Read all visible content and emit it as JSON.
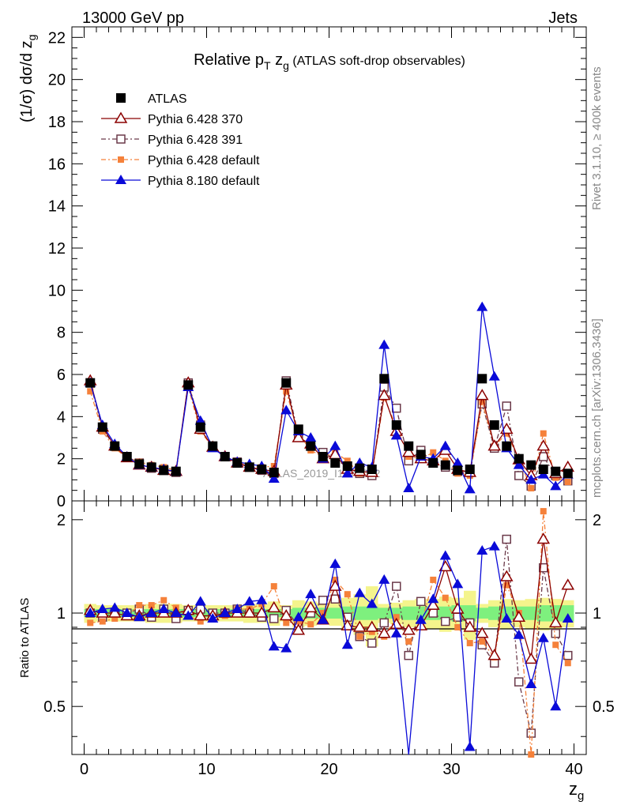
{
  "header": {
    "left": "13000 GeV pp",
    "right": "Jets"
  },
  "side_labels": {
    "rivet": "Rivet 3.1.10, ≥ 400k events",
    "mcplots": "mcplots.cern.ch [arXiv:1306.3436]"
  },
  "title": {
    "pre": "Relative p",
    "sub1": "T",
    "mid": " z",
    "sub2": "g",
    "post": " (ATLAS soft-drop observables)"
  },
  "watermark": "ATLAS_2019_I1772062",
  "ylabel_top": "(1/σ) dσ/d z",
  "ylabel_top_sub": "g",
  "ylabel_bottom": "Ratio to ATLAS",
  "xlabel": "z",
  "xlabel_sub": "g",
  "colors": {
    "atlas": "#000000",
    "p370": "#8b0000",
    "p391": "#6b3a4a",
    "p6def": "#f5813a",
    "p8": "#0a0ad8",
    "band_inner": "#7ef07e",
    "band_outer": "#f4f48c"
  },
  "chart_data": {
    "type": "line",
    "x": [
      0.5,
      1.5,
      2.5,
      3.5,
      4.5,
      5.5,
      6.5,
      7.5,
      8.5,
      9.5,
      10.5,
      11.5,
      12.5,
      13.5,
      14.5,
      15.5,
      16.5,
      17.5,
      18.5,
      19.5,
      20.5,
      21.5,
      22.5,
      23.5,
      24.5,
      25.5,
      26.5,
      27.5,
      28.5,
      29.5,
      30.5,
      31.5,
      32.5,
      33.5,
      34.5,
      35.5,
      36.5,
      37.5,
      38.5,
      39.5
    ],
    "xlim": [
      -1,
      41
    ],
    "top_panel": {
      "ylim": [
        0,
        22.5
      ],
      "yticks": [
        0,
        2,
        4,
        6,
        8,
        10,
        12,
        14,
        16,
        18,
        20,
        22
      ],
      "series": [
        {
          "name": "ATLAS",
          "key": "atlas",
          "marker": "square",
          "values": [
            5.6,
            3.5,
            2.6,
            2.1,
            1.75,
            1.6,
            1.45,
            1.4,
            5.5,
            3.5,
            2.6,
            2.1,
            1.8,
            1.6,
            1.5,
            1.35,
            5.6,
            3.4,
            2.6,
            2.1,
            1.8,
            1.65,
            1.55,
            1.5,
            5.8,
            3.6,
            2.6,
            2.2,
            1.8,
            1.7,
            1.45,
            1.5,
            5.8,
            3.6,
            2.6,
            2.0,
            1.7,
            1.5,
            1.4,
            1.3
          ]
        },
        {
          "name": "Pythia 6.428 370",
          "key": "p370",
          "marker": "triangle-open",
          "values": [
            5.7,
            3.5,
            2.6,
            2.05,
            1.7,
            1.6,
            1.45,
            1.4,
            5.6,
            3.4,
            2.55,
            2.1,
            1.8,
            1.6,
            1.5,
            1.4,
            5.5,
            3.0,
            2.7,
            2.0,
            2.2,
            1.5,
            1.4,
            1.35,
            5.0,
            3.3,
            2.3,
            2.0,
            1.9,
            2.4,
            1.5,
            1.35,
            5.0,
            2.6,
            3.4,
            1.95,
            1.2,
            2.6,
            1.3,
            1.6
          ]
        },
        {
          "name": "Pythia 6.428 391",
          "key": "p391",
          "marker": "square-open",
          "values": [
            5.6,
            3.4,
            2.6,
            2.1,
            1.8,
            1.55,
            1.5,
            1.35,
            5.6,
            3.6,
            2.6,
            2.1,
            1.85,
            1.6,
            1.45,
            1.3,
            5.7,
            3.1,
            2.6,
            2.3,
            2.0,
            1.6,
            1.3,
            1.2,
            5.4,
            4.4,
            1.9,
            2.4,
            1.8,
            1.6,
            1.4,
            1.4,
            4.6,
            2.5,
            4.5,
            1.2,
            0.7,
            2.1,
            1.2,
            0.95
          ]
        },
        {
          "name": "Pythia 6.428 default",
          "key": "p6def",
          "marker": "square-filled",
          "values": [
            5.2,
            3.3,
            2.5,
            2.05,
            1.85,
            1.7,
            1.6,
            1.45,
            5.4,
            3.3,
            2.55,
            2.05,
            1.85,
            1.65,
            1.6,
            1.65,
            5.2,
            3.2,
            2.4,
            2.1,
            2.3,
            1.9,
            1.3,
            1.3,
            4.9,
            3.5,
            2.1,
            2.0,
            2.3,
            1.9,
            1.3,
            1.2,
            4.7,
            2.6,
            3.2,
            2.0,
            0.6,
            3.2,
            1.1,
            0.9
          ]
        },
        {
          "name": "Pythia 8.180 default",
          "key": "p8",
          "marker": "triangle-filled",
          "values": [
            5.6,
            3.6,
            2.7,
            2.1,
            1.7,
            1.6,
            1.5,
            1.4,
            5.4,
            3.8,
            2.5,
            2.1,
            1.85,
            1.75,
            1.65,
            1.05,
            4.3,
            3.3,
            3.0,
            2.0,
            2.6,
            1.3,
            1.8,
            1.6,
            7.4,
            3.1,
            0.6,
            2.1,
            2.0,
            2.6,
            1.8,
            0.55,
            9.2,
            5.9,
            2.5,
            1.7,
            1.0,
            1.25,
            0.7,
            1.25
          ]
        }
      ]
    },
    "bottom_panel": {
      "ylim": [
        0.35,
        2.3
      ],
      "yticks": [
        0.5,
        1,
        2
      ],
      "reference": 1,
      "band_inner_halfwidth": [
        0.03,
        0.03,
        0.03,
        0.03,
        0.03,
        0.03,
        0.03,
        0.03,
        0.03,
        0.03,
        0.03,
        0.03,
        0.03,
        0.03,
        0.03,
        0.03,
        0.03,
        0.04,
        0.04,
        0.04,
        0.04,
        0.05,
        0.05,
        0.05,
        0.04,
        0.04,
        0.05,
        0.05,
        0.05,
        0.05,
        0.06,
        0.06,
        0.04,
        0.05,
        0.05,
        0.05,
        0.05,
        0.06,
        0.06,
        0.06
      ],
      "band_outer_halfwidth": [
        0.07,
        0.06,
        0.06,
        0.06,
        0.06,
        0.07,
        0.07,
        0.07,
        0.06,
        0.06,
        0.06,
        0.06,
        0.06,
        0.07,
        0.07,
        0.09,
        0.06,
        0.1,
        0.09,
        0.08,
        0.09,
        0.12,
        0.15,
        0.22,
        0.07,
        0.08,
        0.1,
        0.11,
        0.11,
        0.13,
        0.12,
        0.18,
        0.07,
        0.1,
        0.11,
        0.1,
        0.11,
        0.12,
        0.11,
        0.1
      ],
      "series": [
        {
          "key": "p370",
          "values": [
            1.02,
            1.0,
            1.0,
            0.98,
            0.98,
            1.0,
            1.0,
            1.0,
            1.02,
            0.98,
            0.98,
            1.0,
            1.0,
            1.0,
            1.0,
            1.04,
            0.98,
            0.88,
            1.04,
            0.95,
            1.22,
            0.91,
            0.9,
            0.9,
            0.86,
            0.92,
            0.88,
            0.91,
            1.06,
            1.41,
            1.03,
            0.9,
            0.86,
            0.73,
            1.31,
            0.97,
            0.71,
            1.73,
            0.93,
            1.23
          ]
        },
        {
          "key": "p391",
          "values": [
            1.0,
            0.97,
            1.0,
            1.0,
            1.03,
            0.97,
            1.03,
            0.96,
            1.02,
            1.03,
            1.0,
            1.0,
            1.03,
            1.0,
            0.97,
            0.96,
            1.02,
            0.91,
            1.0,
            1.1,
            1.11,
            0.97,
            0.84,
            0.8,
            0.93,
            1.22,
            0.73,
            1.09,
            1.0,
            0.94,
            0.97,
            0.93,
            0.79,
            0.69,
            1.73,
            0.6,
            0.41,
            1.4,
            0.86,
            0.73
          ]
        },
        {
          "key": "p6def",
          "values": [
            0.93,
            0.94,
            0.96,
            0.98,
            1.06,
            1.06,
            1.1,
            1.04,
            0.98,
            0.94,
            0.98,
            0.98,
            1.03,
            1.03,
            1.07,
            1.22,
            0.93,
            0.94,
            0.92,
            1.0,
            1.28,
            1.15,
            0.84,
            0.87,
            0.84,
            0.97,
            0.81,
            0.91,
            1.28,
            1.12,
            0.9,
            0.8,
            0.81,
            0.72,
            1.23,
            1.0,
            0.35,
            2.13,
            0.79,
            0.69
          ]
        },
        {
          "key": "p8",
          "values": [
            1.0,
            1.03,
            1.04,
            1.0,
            0.97,
            1.0,
            1.03,
            1.0,
            0.98,
            1.09,
            0.96,
            1.0,
            1.03,
            1.09,
            1.1,
            0.78,
            0.77,
            0.97,
            1.15,
            0.95,
            1.44,
            0.79,
            1.16,
            1.07,
            1.28,
            0.86,
            0.23,
            0.95,
            1.11,
            1.53,
            1.24,
            0.37,
            1.59,
            1.64,
            0.96,
            0.85,
            0.59,
            0.83,
            0.5,
            0.96
          ]
        }
      ]
    }
  }
}
